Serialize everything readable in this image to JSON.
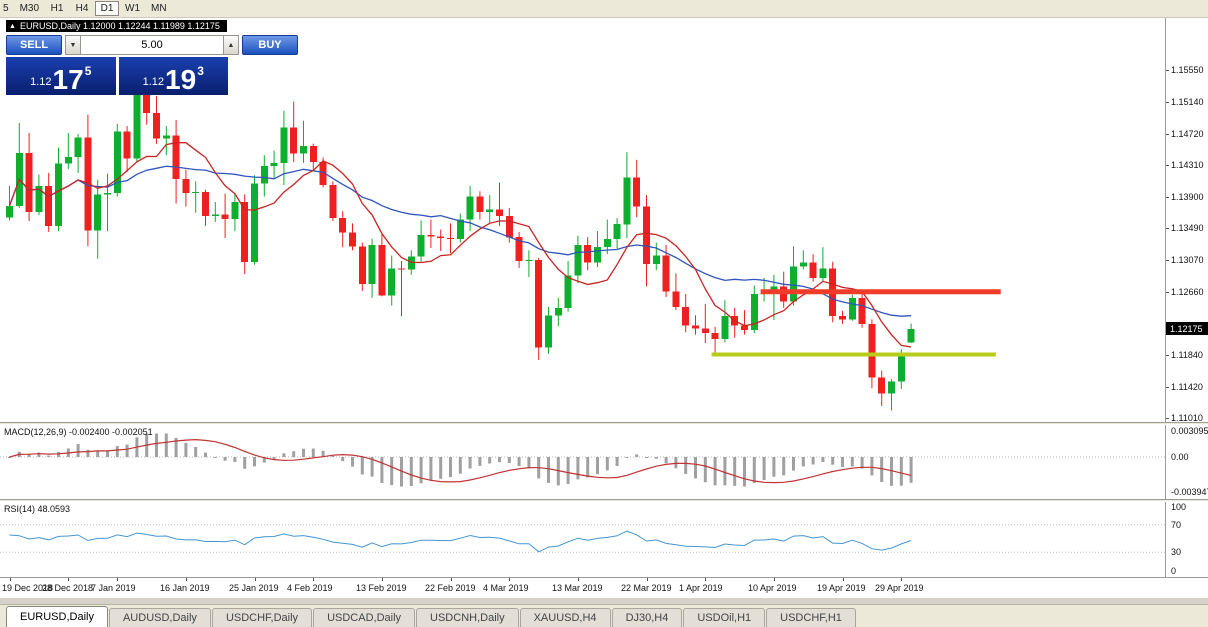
{
  "toolbar": {
    "timeframes": [
      "5",
      "M30",
      "H1",
      "H4",
      "D1",
      "W1",
      "MN"
    ],
    "active": "D1"
  },
  "chart": {
    "title": "EURUSD,Daily 1.12000 1.12244 1.11989 1.12175",
    "symbol": "EURUSD,Daily",
    "current_price": "1.12175"
  },
  "trade_panel": {
    "sell_label": "SELL",
    "buy_label": "BUY",
    "volume": "5.00",
    "bid_prefix": "1.12",
    "bid_big": "17",
    "bid_sup": "5",
    "ask_prefix": "1.12",
    "ask_big": "19",
    "ask_sup": "3"
  },
  "tabs": {
    "active": "EURUSD,Daily",
    "items": [
      "EURUSD,Daily",
      "AUDUSD,Daily",
      "USDCHF,Daily",
      "USDCAD,Daily",
      "USDCNH,Daily",
      "XAUUSD,H4",
      "DJ30,H4",
      "USDOil,H1",
      "USDCHF,H1"
    ]
  },
  "chart_data": {
    "type": "candlestick",
    "title": "EURUSD,Daily",
    "ohlc_display": {
      "open": "1.12000",
      "high": "1.12244",
      "low": "1.11989",
      "close": "1.12175"
    },
    "y_axis_labels": [
      "1.15550",
      "1.15140",
      "1.14720",
      "1.14310",
      "1.13900",
      "1.13490",
      "1.13070",
      "1.12660",
      "1.11840",
      "1.11420",
      "1.11010"
    ],
    "x_labels": [
      {
        "label": "19 Dec 2018",
        "i": 0
      },
      {
        "label": "28 Dec 2018",
        "i": 6
      },
      {
        "label": "7 Jan 2019",
        "i": 11
      },
      {
        "label": "16 Jan 2019",
        "i": 18
      },
      {
        "label": "25 Jan 2019",
        "i": 25
      },
      {
        "label": "4 Feb 2019",
        "i": 31
      },
      {
        "label": "13 Feb 2019",
        "i": 38
      },
      {
        "label": "22 Feb 2019",
        "i": 45
      },
      {
        "label": "4 Mar 2019",
        "i": 51
      },
      {
        "label": "13 Mar 2019",
        "i": 58
      },
      {
        "label": "22 Mar 2019",
        "i": 65
      },
      {
        "label": "1 Apr 2019",
        "i": 71
      },
      {
        "label": "10 Apr 2019",
        "i": 78
      },
      {
        "label": "19 Apr 2019",
        "i": 85
      },
      {
        "label": "29 Apr 2019",
        "i": 91
      }
    ],
    "candles": [
      [
        1.1363,
        1.1404,
        1.1359,
        1.1378
      ],
      [
        1.1378,
        1.1486,
        1.1375,
        1.1447
      ],
      [
        1.1447,
        1.1473,
        1.1358,
        1.137
      ],
      [
        1.137,
        1.1419,
        1.1366,
        1.1404
      ],
      [
        1.1404,
        1.1421,
        1.1344,
        1.1352
      ],
      [
        1.1352,
        1.1454,
        1.1345,
        1.1433
      ],
      [
        1.1433,
        1.1473,
        1.1426,
        1.1442
      ],
      [
        1.1442,
        1.1472,
        1.1421,
        1.1467
      ],
      [
        1.1467,
        1.1497,
        1.1325,
        1.1346
      ],
      [
        1.1346,
        1.1412,
        1.1309,
        1.1393
      ],
      [
        1.1393,
        1.142,
        1.1345,
        1.1395
      ],
      [
        1.1395,
        1.1485,
        1.139,
        1.1475
      ],
      [
        1.1475,
        1.1482,
        1.1422,
        1.144
      ],
      [
        1.144,
        1.1535,
        1.1435,
        1.1525
      ],
      [
        1.1525,
        1.154,
        1.1484,
        1.1499
      ],
      [
        1.1499,
        1.1521,
        1.1459,
        1.1466
      ],
      [
        1.1466,
        1.1482,
        1.1444,
        1.147
      ],
      [
        1.147,
        1.149,
        1.1381,
        1.1413
      ],
      [
        1.1413,
        1.1425,
        1.1377,
        1.1395
      ],
      [
        1.1395,
        1.141,
        1.1369,
        1.1396
      ],
      [
        1.1396,
        1.1399,
        1.1352,
        1.1365
      ],
      [
        1.1365,
        1.1383,
        1.1357,
        1.1367
      ],
      [
        1.1367,
        1.1394,
        1.1336,
        1.1361
      ],
      [
        1.1361,
        1.1394,
        1.1345,
        1.1383
      ],
      [
        1.1383,
        1.1393,
        1.1289,
        1.1305
      ],
      [
        1.1305,
        1.1418,
        1.1301,
        1.1407
      ],
      [
        1.1407,
        1.1444,
        1.139,
        1.143
      ],
      [
        1.143,
        1.145,
        1.1413,
        1.1434
      ],
      [
        1.1434,
        1.1502,
        1.1405,
        1.148
      ],
      [
        1.148,
        1.1514,
        1.1435,
        1.1446
      ],
      [
        1.1446,
        1.1489,
        1.1434,
        1.1456
      ],
      [
        1.1456,
        1.1459,
        1.1424,
        1.1435
      ],
      [
        1.1435,
        1.1441,
        1.1402,
        1.1405
      ],
      [
        1.1405,
        1.141,
        1.1358,
        1.1362
      ],
      [
        1.1362,
        1.1371,
        1.1324,
        1.1343
      ],
      [
        1.1343,
        1.1355,
        1.132,
        1.1325
      ],
      [
        1.1325,
        1.133,
        1.1267,
        1.1276
      ],
      [
        1.1276,
        1.1335,
        1.1258,
        1.1327
      ],
      [
        1.1327,
        1.1341,
        1.126,
        1.1261
      ],
      [
        1.1261,
        1.1313,
        1.1248,
        1.1296
      ],
      [
        1.1296,
        1.1306,
        1.1234,
        1.1295
      ],
      [
        1.1295,
        1.132,
        1.1288,
        1.1312
      ],
      [
        1.1312,
        1.1359,
        1.1305,
        1.134
      ],
      [
        1.134,
        1.136,
        1.1323,
        1.1338
      ],
      [
        1.1338,
        1.1347,
        1.1319,
        1.1336
      ],
      [
        1.1336,
        1.1355,
        1.1316,
        1.1335
      ],
      [
        1.1335,
        1.1368,
        1.133,
        1.136
      ],
      [
        1.136,
        1.1404,
        1.1345,
        1.139
      ],
      [
        1.139,
        1.1397,
        1.136,
        1.137
      ],
      [
        1.137,
        1.1392,
        1.1355,
        1.1373
      ],
      [
        1.1373,
        1.1408,
        1.1352,
        1.1365
      ],
      [
        1.1365,
        1.1375,
        1.133,
        1.1337
      ],
      [
        1.1337,
        1.1344,
        1.1297,
        1.1306
      ],
      [
        1.1306,
        1.132,
        1.1285,
        1.1307
      ],
      [
        1.1307,
        1.131,
        1.1177,
        1.1193
      ],
      [
        1.1193,
        1.1246,
        1.1185,
        1.1235
      ],
      [
        1.1235,
        1.1258,
        1.1221,
        1.1245
      ],
      [
        1.1245,
        1.1306,
        1.124,
        1.1287
      ],
      [
        1.1287,
        1.1339,
        1.1277,
        1.1327
      ],
      [
        1.1327,
        1.1337,
        1.1294,
        1.1304
      ],
      [
        1.1304,
        1.1345,
        1.1298,
        1.1324
      ],
      [
        1.1324,
        1.136,
        1.1315,
        1.1335
      ],
      [
        1.1335,
        1.1362,
        1.1322,
        1.1354
      ],
      [
        1.1354,
        1.1448,
        1.1336,
        1.1415
      ],
      [
        1.1415,
        1.1438,
        1.1363,
        1.1377
      ],
      [
        1.1377,
        1.1392,
        1.1273,
        1.1302
      ],
      [
        1.1302,
        1.133,
        1.1294,
        1.1313
      ],
      [
        1.1313,
        1.1327,
        1.1259,
        1.1266
      ],
      [
        1.1266,
        1.129,
        1.1242,
        1.1246
      ],
      [
        1.1246,
        1.1263,
        1.1213,
        1.1222
      ],
      [
        1.1222,
        1.1235,
        1.121,
        1.1218
      ],
      [
        1.1218,
        1.125,
        1.1199,
        1.1212
      ],
      [
        1.1212,
        1.122,
        1.1183,
        1.1204
      ],
      [
        1.1204,
        1.1255,
        1.12,
        1.1234
      ],
      [
        1.1234,
        1.1245,
        1.1206,
        1.1222
      ],
      [
        1.1222,
        1.1242,
        1.121,
        1.1216
      ],
      [
        1.1216,
        1.1274,
        1.1212,
        1.1263
      ],
      [
        1.1263,
        1.1284,
        1.1253,
        1.1264
      ],
      [
        1.1264,
        1.1288,
        1.1229,
        1.1273
      ],
      [
        1.1273,
        1.1292,
        1.1245,
        1.1253
      ],
      [
        1.1253,
        1.1325,
        1.1248,
        1.1299
      ],
      [
        1.1299,
        1.132,
        1.1295,
        1.1304
      ],
      [
        1.1304,
        1.1315,
        1.1279,
        1.1284
      ],
      [
        1.1284,
        1.1324,
        1.128,
        1.1296
      ],
      [
        1.1296,
        1.1305,
        1.1226,
        1.1234
      ],
      [
        1.1234,
        1.1241,
        1.1224,
        1.123
      ],
      [
        1.123,
        1.1262,
        1.1228,
        1.1258
      ],
      [
        1.1258,
        1.1264,
        1.1219,
        1.1224
      ],
      [
        1.1224,
        1.123,
        1.114,
        1.1154
      ],
      [
        1.1154,
        1.1163,
        1.1117,
        1.1133
      ],
      [
        1.1133,
        1.1152,
        1.1111,
        1.1149
      ],
      [
        1.1149,
        1.1191,
        1.1139,
        1.1185
      ],
      [
        1.12,
        1.12244,
        1.11989,
        1.12175
      ]
    ],
    "colors": {
      "up": "#0eae2e",
      "down": "#ef2020",
      "ma_fast": "#c82424",
      "ma_slow": "#2f55bd",
      "macd_hist": "#a0a0a0",
      "macd_signal": "#c23232",
      "rsi": "#4596d2",
      "resistance": "#f03c28",
      "support": "#b8cc1a"
    },
    "hlines": [
      {
        "name": "resistance",
        "price": 1.1266,
        "i1": 77,
        "i2": 101.5,
        "color": "#f03c28",
        "width": 5
      },
      {
        "name": "support",
        "price": 1.1184,
        "i1": 72,
        "i2": 101.0,
        "color": "#b8cc1a",
        "width": 4
      }
    ],
    "indicators": [
      {
        "name": "MACD",
        "label": "MACD(12,26,9) -0.002400 -0.002051",
        "axis": [
          "0.003095",
          "0.00",
          "-0.003947"
        ]
      },
      {
        "name": "RSI",
        "label": "RSI(14) 48.0593",
        "axis": [
          "100",
          "70",
          "30",
          "0"
        ]
      }
    ]
  }
}
